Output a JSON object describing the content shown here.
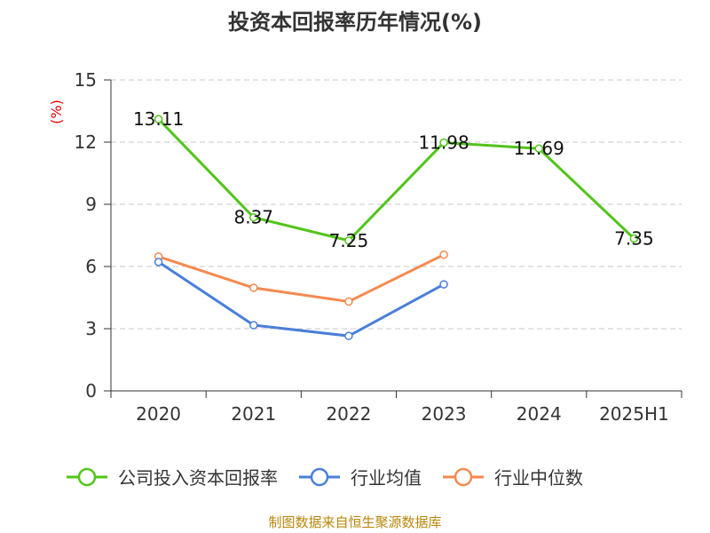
{
  "chart_data": {
    "type": "line",
    "title": "投资本回报率历年情况(%)",
    "ylabel": "(%)",
    "xlabel": "",
    "categories": [
      "2020",
      "2021",
      "2022",
      "2023",
      "2024",
      "2025H1"
    ],
    "ylim": [
      0,
      15
    ],
    "yticks": [
      0,
      3,
      6,
      9,
      12,
      15
    ],
    "grid": true,
    "legend_position": "bottom",
    "series": [
      {
        "name": "公司投入资本回报率",
        "color": "#52c41a",
        "values": [
          13.11,
          8.37,
          7.25,
          11.98,
          11.69,
          7.35
        ],
        "labels": [
          "13.11",
          "8.37",
          "7.25",
          "11.98",
          "11.69",
          "7.35"
        ]
      },
      {
        "name": "行业均值",
        "color": "#4a7fd9",
        "values": [
          6.22,
          3.17,
          2.65,
          5.14,
          null,
          null
        ]
      },
      {
        "name": "行业中位数",
        "color": "#f5894f",
        "values": [
          6.48,
          4.97,
          4.31,
          6.57,
          null,
          null
        ]
      }
    ]
  },
  "source": "制图数据来自恒生聚源数据库"
}
